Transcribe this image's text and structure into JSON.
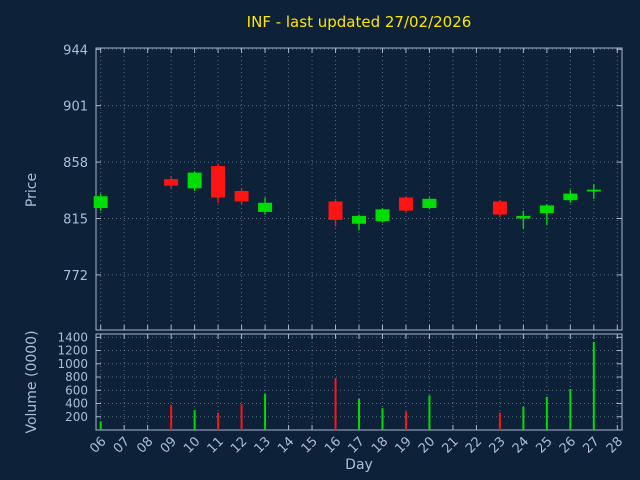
{
  "title": "INF - last updated 27/02/2026",
  "colors": {
    "background": "#0d2138",
    "title": "#ffe600",
    "axis_text": "#a9bedb",
    "border": "#a5b8d0",
    "grid": "#9fb0c8",
    "up": "#00dd00",
    "down": "#ff1414"
  },
  "chart_data": {
    "type": "candlestick+volume",
    "title": "INF - last updated 27/02/2026",
    "xlabel": "Day",
    "price_axis": {
      "label": "Price",
      "ticks": [
        944,
        901,
        858,
        815,
        772
      ],
      "range": [
        730,
        945
      ]
    },
    "volume_axis": {
      "label": "Volume (0000)",
      "ticks": [
        1400,
        1200,
        1000,
        800,
        600,
        400,
        200
      ],
      "range": [
        0,
        1450
      ]
    },
    "x_axis": {
      "ticks": [
        "06",
        "07",
        "08",
        "09",
        "10",
        "11",
        "12",
        "13",
        "14",
        "15",
        "16",
        "17",
        "18",
        "19",
        "20",
        "21",
        "22",
        "23",
        "24",
        "25",
        "26",
        "27",
        "28"
      ],
      "range": [
        5.8,
        28.2
      ]
    },
    "grid": true,
    "legend": "none",
    "candles": [
      {
        "day": 6,
        "open": 823,
        "high": 834,
        "low": 821,
        "close": 832,
        "volume": 130
      },
      {
        "day": 9,
        "open": 845,
        "high": 847,
        "low": 838,
        "close": 840,
        "volume": 380
      },
      {
        "day": 10,
        "open": 838,
        "high": 851,
        "low": 836,
        "close": 850,
        "volume": 300
      },
      {
        "day": 11,
        "open": 855,
        "high": 857,
        "low": 827,
        "close": 831,
        "volume": 260
      },
      {
        "day": 12,
        "open": 836,
        "high": 838,
        "low": 826,
        "close": 828,
        "volume": 390
      },
      {
        "day": 13,
        "open": 820,
        "high": 831,
        "low": 818,
        "close": 827,
        "volume": 550
      },
      {
        "day": 16,
        "open": 828,
        "high": 830,
        "low": 809,
        "close": 814,
        "volume": 780
      },
      {
        "day": 17,
        "open": 811,
        "high": 818,
        "low": 806,
        "close": 817,
        "volume": 470
      },
      {
        "day": 18,
        "open": 813,
        "high": 823,
        "low": 812,
        "close": 822,
        "volume": 330
      },
      {
        "day": 19,
        "open": 831,
        "high": 832,
        "low": 820,
        "close": 821,
        "volume": 280
      },
      {
        "day": 20,
        "open": 823,
        "high": 831,
        "low": 822,
        "close": 830,
        "volume": 520
      },
      {
        "day": 23,
        "open": 828,
        "high": 829,
        "low": 816,
        "close": 818,
        "volume": 260
      },
      {
        "day": 24,
        "open": 815,
        "high": 821,
        "low": 807,
        "close": 817,
        "volume": 350
      },
      {
        "day": 25,
        "open": 819,
        "high": 826,
        "low": 810,
        "close": 825,
        "volume": 500
      },
      {
        "day": 26,
        "open": 829,
        "high": 837,
        "low": 827,
        "close": 834,
        "volume": 620
      },
      {
        "day": 27,
        "open": 836,
        "high": 841,
        "low": 830,
        "close": 837,
        "volume": 1330
      }
    ]
  }
}
